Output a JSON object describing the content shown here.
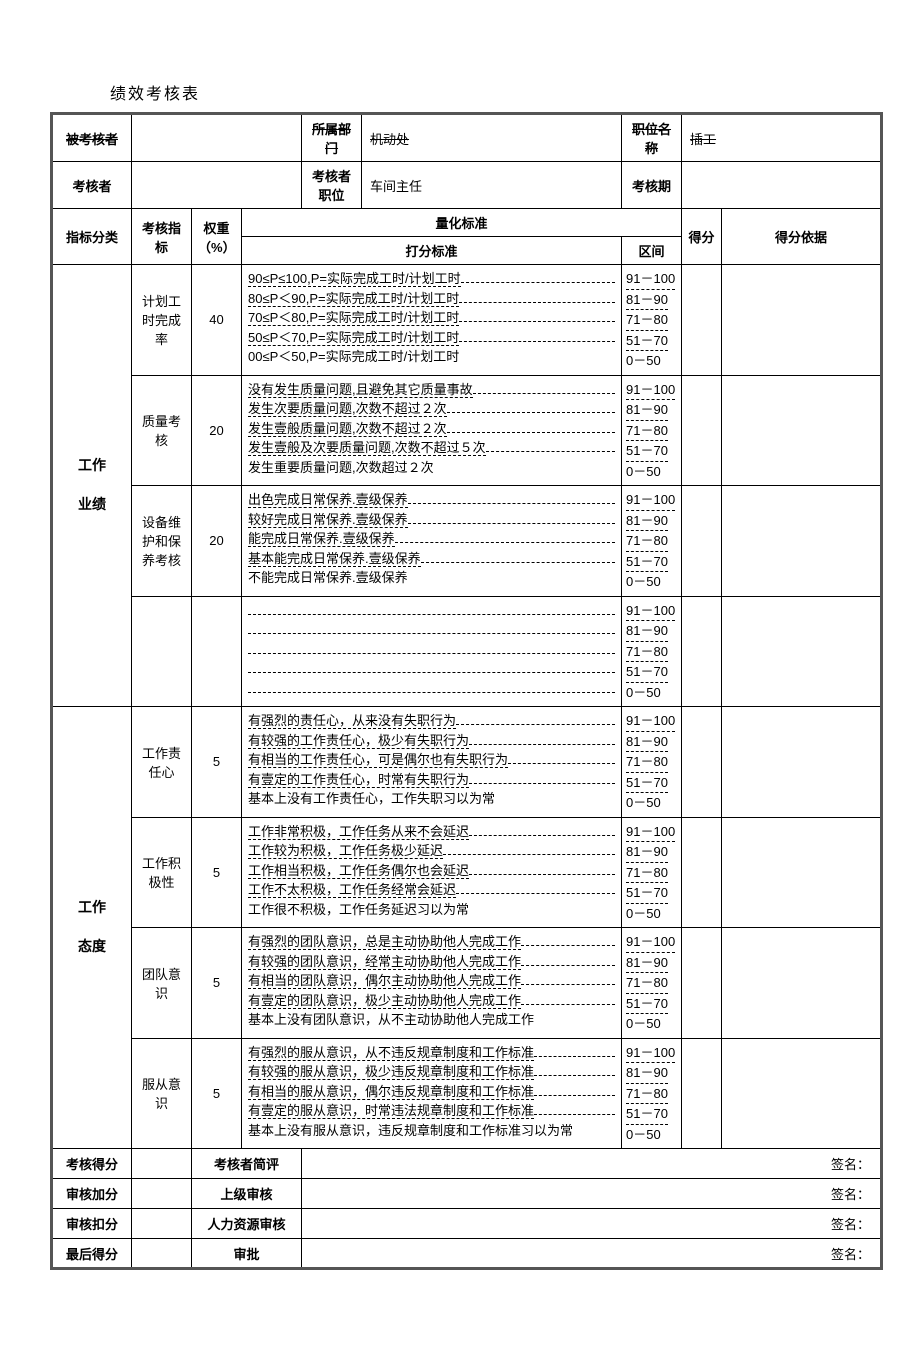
{
  "title": "绩效考核表",
  "header": {
    "row1": {
      "label1": "被考核者",
      "label2": "所属部门",
      "value2": "机动处",
      "label3": "职位名称",
      "value3": "插工"
    },
    "row2": {
      "label1": "考核者",
      "label2": "考核者职位",
      "value2": "车间主任",
      "label3": "考核期"
    }
  },
  "tableHeader": {
    "col1": "指标分类",
    "col2": "考核指标",
    "col3": "权重（%）",
    "col4": "量化标准",
    "col5": "打分标准",
    "col6": "区间",
    "col7": "得分",
    "col8": "得分依据"
  },
  "ranges": [
    "91－100",
    "81－90",
    "71－80",
    "51－70",
    "0－50"
  ],
  "categories": [
    {
      "name": "工作\n\n业绩",
      "rows": [
        {
          "indicator": "计划工时完成率",
          "weight": "40",
          "criteria": [
            "90≤P≤100,P=实际完成工时/计划工时",
            "80≤P＜90,P=实际完成工时/计划工时",
            "70≤P＜80,P=实际完成工时/计划工时",
            "50≤P＜70,P=实际完成工时/计划工时",
            "00≤P＜50,P=实际完成工时/计划工时"
          ]
        },
        {
          "indicator": "质量考核",
          "weight": "20",
          "criteria": [
            "没有发生质量问题,且避免其它质量事故",
            "发生次要质量问题,次数不超过２次",
            "发生壹般质量问题,次数不超过２次",
            "发生壹般及次要质量问题,次数不超过５次",
            "发生重要质量问题,次数超过２次"
          ]
        },
        {
          "indicator": "设备维护和保养考核",
          "weight": "20",
          "criteria": [
            "出色完成日常保养.壹级保养",
            "较好完成日常保养.壹级保养",
            "能完成日常保养.壹级保养",
            "基本能完成日常保养.壹级保养",
            "不能完成日常保养.壹级保养"
          ]
        },
        {
          "indicator": "",
          "weight": "",
          "criteria": [
            "",
            "",
            "",
            "",
            ""
          ]
        }
      ]
    },
    {
      "name": "工作\n\n态度",
      "rows": [
        {
          "indicator": "工作责任心",
          "weight": "5",
          "criteria": [
            "有强烈的责任心，从来没有失职行为",
            "有较强的工作责任心，极少有失职行为",
            "有相当的工作责任心，可是偶尔也有失职行为",
            "有壹定的工作责任心，时常有失职行为",
            "基本上没有工作责任心，工作失职习以为常"
          ]
        },
        {
          "indicator": "工作积极性",
          "weight": "5",
          "criteria": [
            "工作非常积极，工作任务从来不会延迟",
            "工作较为积极，工作任务极少延迟",
            "工作相当积极，工作任务偶尔也会延迟",
            "工作不太积极，工作任务经常会延迟",
            "工作很不积极，工作任务延迟习以为常"
          ]
        },
        {
          "indicator": "团队意识",
          "weight": "5",
          "criteria": [
            "有强烈的团队意识，总是主动协助他人完成工作",
            "有较强的团队意识，经常主动协助他人完成工作",
            "有相当的团队意识，偶尔主动协助他人完成工作",
            "有壹定的团队意识，极少主动协助他人完成工作",
            "基本上没有团队意识，从不主动协助他人完成工作"
          ]
        },
        {
          "indicator": "服从意识",
          "weight": "5",
          "criteria": [
            "有强烈的服从意识，从不违反规章制度和工作标准",
            "有较强的服从意识，极少违反规章制度和工作标准",
            "有相当的服从意识，偶尔违反规章制度和工作标准",
            "有壹定的服从意识，时常违法规章制度和工作标准",
            "基本上没有服从意识，违反规章制度和工作标准习以为常"
          ]
        }
      ]
    }
  ],
  "footer": {
    "r1c1": "考核得分",
    "r1c2": "考核者简评",
    "r2c1": "审核加分",
    "r2c2": "上级审核",
    "r3c1": "审核扣分",
    "r3c2": "人力资源审核",
    "r4c1": "最后得分",
    "r4c2": "审批",
    "sig": "签名："
  }
}
